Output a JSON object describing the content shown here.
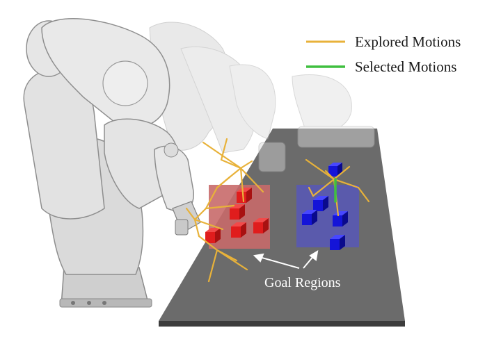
{
  "legend": {
    "explored_label": "Explored Motions",
    "selected_label": "Selected Motions",
    "explored_color": "#e8b23a",
    "selected_color": "#3fbf3f"
  },
  "annotation": {
    "goal_label": "Goal Regions"
  },
  "colors": {
    "table": "#6b6b6b",
    "red_region": "#c86a6a",
    "blue_region": "#5a5ab0",
    "red_cube": "#e01d1d",
    "blue_cube": "#1414d8",
    "robot": "#d9d9d9"
  }
}
